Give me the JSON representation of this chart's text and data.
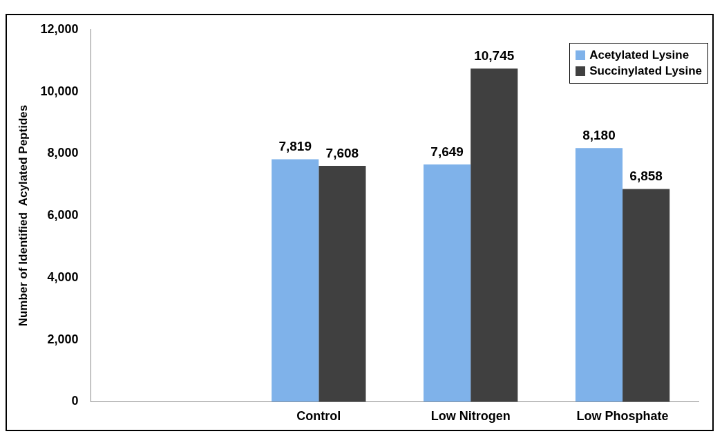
{
  "chart_data": {
    "type": "bar",
    "ylabel": "Number of Identified  Acylated Peptides",
    "categories": [
      null,
      "Control",
      "Low Nitrogen",
      "Low Phosphate"
    ],
    "series": [
      {
        "name": "Acetylated Lysine",
        "color": "#7fb2ea",
        "values": [
          null,
          7819,
          7649,
          8180
        ],
        "value_labels": [
          null,
          "7,819",
          "7,649",
          "8,180"
        ]
      },
      {
        "name": "Succinylated Lysine",
        "color": "#404040",
        "values": [
          null,
          7608,
          10745,
          6858
        ],
        "value_labels": [
          null,
          "7,608",
          "10,745",
          "6,858"
        ]
      }
    ],
    "ylim": [
      0,
      12000
    ],
    "yticks": [
      {
        "value": 0,
        "label": "0"
      },
      {
        "value": 2000,
        "label": "2,000"
      },
      {
        "value": 4000,
        "label": "4,000"
      },
      {
        "value": 6000,
        "label": "6,000"
      },
      {
        "value": 8000,
        "label": "8,000"
      },
      {
        "value": 10000,
        "label": "10,000"
      },
      {
        "value": 12000,
        "label": "12,000"
      }
    ],
    "legend": "top right",
    "grid": false
  }
}
